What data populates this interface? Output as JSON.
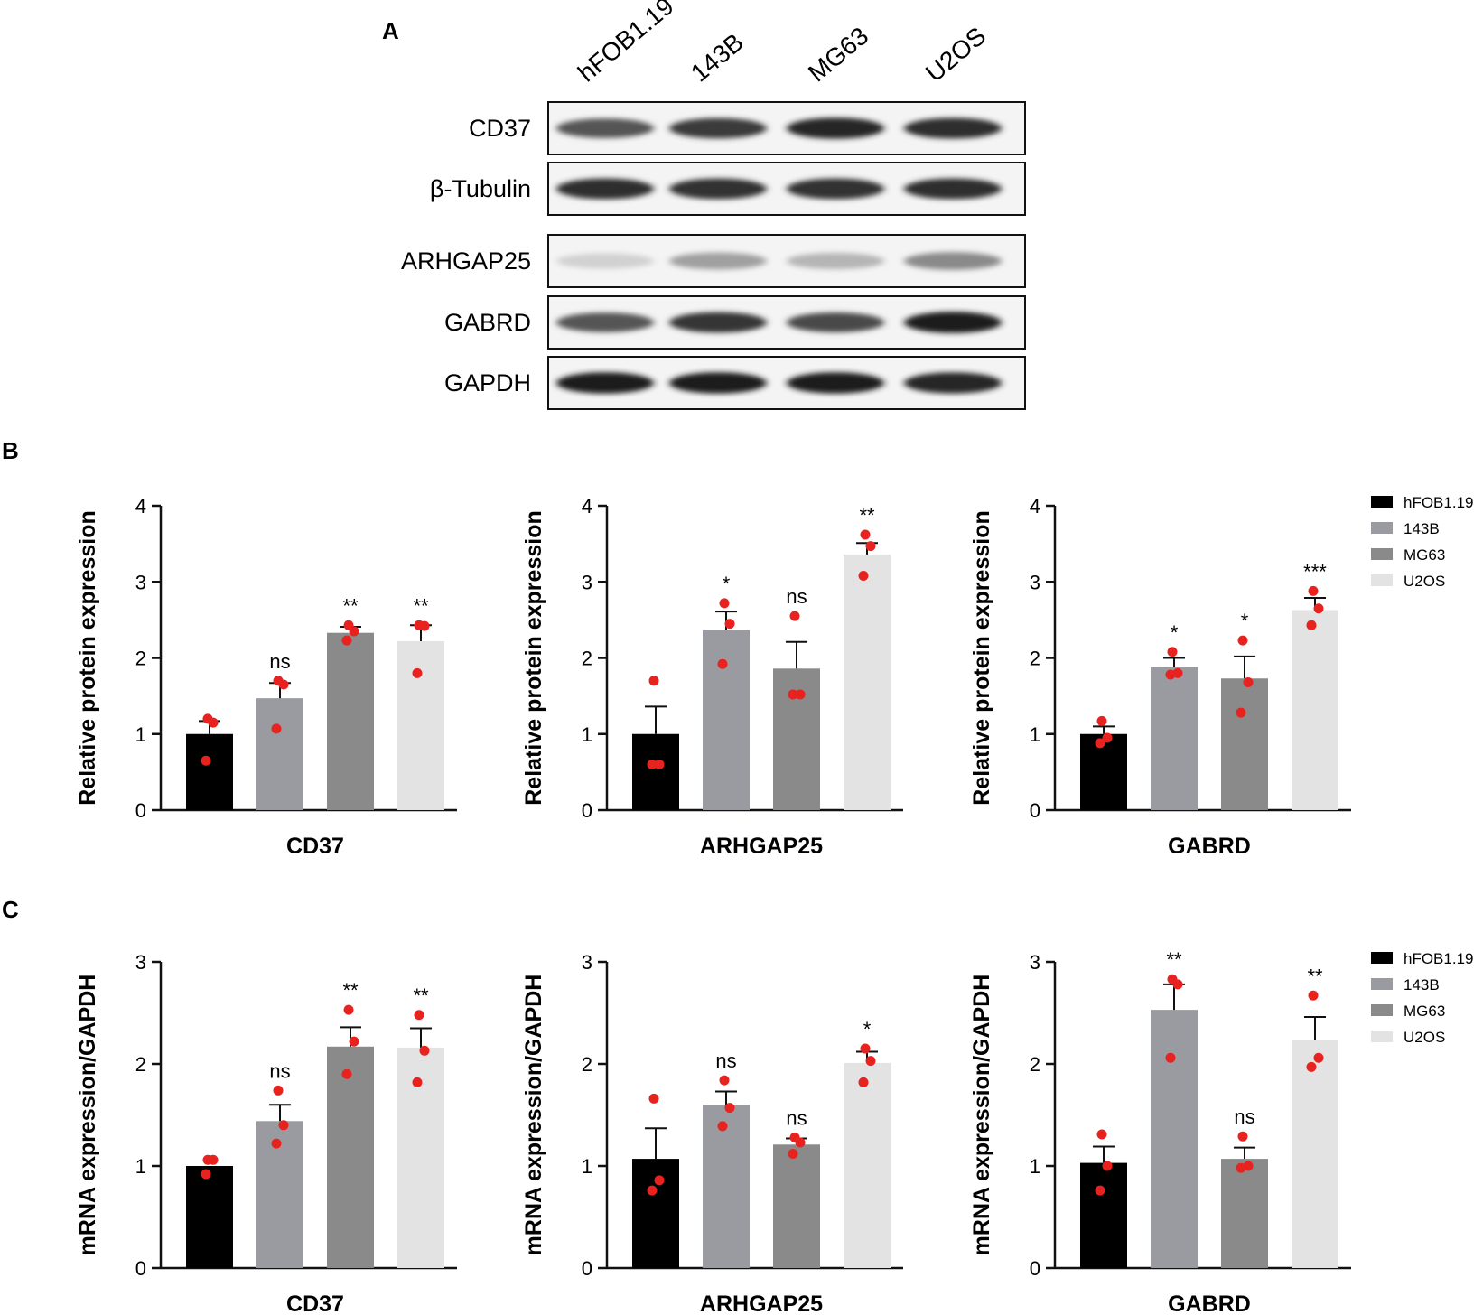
{
  "panels": {
    "A": "A",
    "B": "B",
    "C": "C"
  },
  "blot": {
    "lanes": [
      "hFOB1.19",
      "143B",
      "MG63",
      "U2OS"
    ],
    "strips": [
      {
        "label": "CD37",
        "intensity": [
          0.7,
          0.82,
          0.92,
          0.88
        ]
      },
      {
        "label": "β-Tubulin",
        "intensity": [
          0.88,
          0.86,
          0.86,
          0.88
        ]
      },
      {
        "label": "ARHGAP25",
        "intensity": [
          0.12,
          0.35,
          0.25,
          0.45
        ]
      },
      {
        "label": "GABRD",
        "intensity": [
          0.7,
          0.85,
          0.75,
          0.95
        ]
      },
      {
        "label": "GAPDH",
        "intensity": [
          0.95,
          0.95,
          0.95,
          0.92
        ]
      }
    ]
  },
  "legend": {
    "entries": [
      "hFOB1.19",
      "143B",
      "MG63",
      "U2OS"
    ],
    "colors": [
      "#000000",
      "#9a9ba0",
      "#8a8a8a",
      "#e3e3e3"
    ]
  },
  "chart_data": [
    {
      "type": "bar",
      "panel": "B",
      "title": "",
      "xlabel": "CD37",
      "ylabel": "Relative protein expression",
      "categories": [
        "hFOB1.19",
        "143B",
        "MG63",
        "U2OS"
      ],
      "ylim": [
        0,
        4
      ],
      "yticks": [
        0,
        1,
        2,
        3,
        4
      ],
      "values": [
        1.0,
        1.47,
        2.33,
        2.22
      ],
      "errors": [
        0.17,
        0.2,
        0.08,
        0.21
      ],
      "points": [
        [
          1.2,
          1.15,
          0.65
        ],
        [
          1.7,
          1.65,
          1.07
        ],
        [
          2.43,
          2.35,
          2.23
        ],
        [
          2.43,
          2.42,
          1.8
        ]
      ],
      "significance": [
        "",
        "ns",
        "**",
        "**"
      ]
    },
    {
      "type": "bar",
      "panel": "B",
      "title": "",
      "xlabel": "ARHGAP25",
      "ylabel": "Relative protein expression",
      "categories": [
        "hFOB1.19",
        "143B",
        "MG63",
        "U2OS"
      ],
      "ylim": [
        0,
        4
      ],
      "yticks": [
        0,
        1,
        2,
        3,
        4
      ],
      "values": [
        1.0,
        2.37,
        1.86,
        3.36
      ],
      "errors": [
        0.36,
        0.24,
        0.35,
        0.15
      ],
      "points": [
        [
          1.7,
          0.6,
          0.6
        ],
        [
          2.72,
          2.45,
          1.92
        ],
        [
          2.55,
          1.52,
          1.52
        ],
        [
          3.62,
          3.47,
          3.08
        ]
      ],
      "significance": [
        "",
        "*",
        "ns",
        "**"
      ]
    },
    {
      "type": "bar",
      "panel": "B",
      "title": "",
      "xlabel": "GABRD",
      "ylabel": "Relative protein expression",
      "categories": [
        "hFOB1.19",
        "143B",
        "MG63",
        "U2OS"
      ],
      "ylim": [
        0,
        4
      ],
      "yticks": [
        0,
        1,
        2,
        3,
        4
      ],
      "values": [
        1.0,
        1.88,
        1.73,
        2.63
      ],
      "errors": [
        0.1,
        0.12,
        0.29,
        0.16
      ],
      "points": [
        [
          1.17,
          0.95,
          0.88
        ],
        [
          2.08,
          1.8,
          1.78
        ],
        [
          2.23,
          1.68,
          1.28
        ],
        [
          2.88,
          2.65,
          2.43
        ]
      ],
      "significance": [
        "",
        "*",
        "*",
        "***"
      ]
    },
    {
      "type": "bar",
      "panel": "C",
      "title": "",
      "xlabel": "CD37",
      "ylabel": "mRNA expression/GAPDH",
      "categories": [
        "hFOB1.19",
        "143B",
        "MG63",
        "U2OS"
      ],
      "ylim": [
        0,
        3
      ],
      "yticks": [
        0,
        1,
        2,
        3
      ],
      "values": [
        1.0,
        1.44,
        2.17,
        2.16
      ],
      "errors": [
        0.0,
        0.16,
        0.19,
        0.19
      ],
      "points": [
        [
          1.06,
          1.06,
          0.92
        ],
        [
          1.74,
          1.4,
          1.22
        ],
        [
          2.53,
          2.22,
          1.9
        ],
        [
          2.48,
          2.13,
          1.82
        ]
      ],
      "significance": [
        "",
        "ns",
        "**",
        "**"
      ]
    },
    {
      "type": "bar",
      "panel": "C",
      "title": "",
      "xlabel": "ARHGAP25",
      "ylabel": "mRNA expression/GAPDH",
      "categories": [
        "hFOB1.19",
        "143B",
        "MG63",
        "U2OS"
      ],
      "ylim": [
        0,
        3
      ],
      "yticks": [
        0,
        1,
        2,
        3
      ],
      "values": [
        1.07,
        1.6,
        1.21,
        2.01
      ],
      "errors": [
        0.3,
        0.13,
        0.06,
        0.11
      ],
      "points": [
        [
          1.66,
          0.86,
          0.76
        ],
        [
          1.84,
          1.57,
          1.39
        ],
        [
          1.28,
          1.23,
          1.12
        ],
        [
          2.15,
          2.03,
          1.82
        ]
      ],
      "significance": [
        "",
        "ns",
        "ns",
        "*"
      ]
    },
    {
      "type": "bar",
      "panel": "C",
      "title": "",
      "xlabel": "GABRD",
      "ylabel": "mRNA expression/GAPDH",
      "categories": [
        "hFOB1.19",
        "143B",
        "MG63",
        "U2OS"
      ],
      "ylim": [
        0,
        3
      ],
      "yticks": [
        0,
        1,
        2,
        3
      ],
      "values": [
        1.03,
        2.53,
        1.07,
        2.23
      ],
      "errors": [
        0.16,
        0.25,
        0.11,
        0.23
      ],
      "points": [
        [
          1.31,
          1.0,
          0.76
        ],
        [
          2.83,
          2.78,
          2.06
        ],
        [
          1.29,
          1.0,
          0.98
        ],
        [
          2.67,
          2.06,
          1.97
        ]
      ],
      "significance": [
        "",
        "**",
        "ns",
        "**"
      ]
    }
  ]
}
